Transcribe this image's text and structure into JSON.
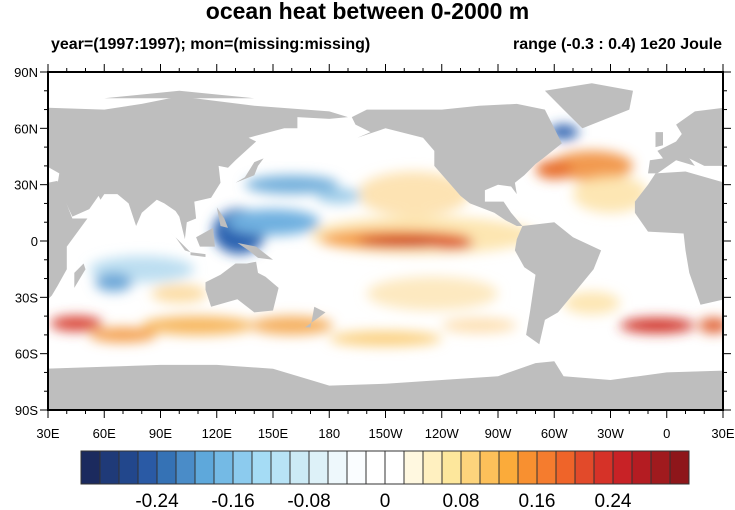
{
  "title": "ocean heat between 0-2000 m",
  "subtitle_left": "year=(1997:1997); mon=(missing:missing)",
  "subtitle_right": "range (-0.3 : 0.4) 1e20 Joule",
  "axes": {
    "lat_labels": [
      "90N",
      "60N",
      "30N",
      "0",
      "30S",
      "60S",
      "90S"
    ],
    "lat_values": [
      90,
      60,
      30,
      0,
      -30,
      -60,
      -90
    ],
    "lon_labels": [
      "30E",
      "60E",
      "90E",
      "120E",
      "150E",
      "180",
      "150W",
      "120W",
      "90W",
      "60W",
      "30W",
      "0",
      "30E"
    ],
    "lon_values": [
      30,
      60,
      90,
      120,
      150,
      180,
      210,
      240,
      270,
      300,
      330,
      360,
      390
    ]
  },
  "colors": {
    "land": "#bebebe",
    "missing": "#ffffff"
  },
  "colorbar": {
    "colors": [
      "#1b2a5e",
      "#1f3a78",
      "#22478c",
      "#2a5aa5",
      "#3572b5",
      "#4a8cc8",
      "#5ea8db",
      "#74bae5",
      "#8ccbee",
      "#a5dcf5",
      "#b8e3f6",
      "#cceaf5",
      "#ddf1f8",
      "#eef8fc",
      "#fafdff",
      "#ffffff",
      "#ffffff",
      "#fff8e0",
      "#fff0c0",
      "#fde79c",
      "#fdd47c",
      "#fdc05a",
      "#fbab3a",
      "#f89030",
      "#f57c2e",
      "#ef6429",
      "#e24a2a",
      "#d63228",
      "#c82226",
      "#b41c22",
      "#a01a1e",
      "#8e161a"
    ],
    "labels": [
      "-0.24",
      "-0.16",
      "-0.08",
      "0",
      "0.08",
      "0.16",
      "0.24"
    ],
    "label_boundaries": [
      4,
      8,
      12,
      16,
      20,
      24,
      28
    ]
  }
}
